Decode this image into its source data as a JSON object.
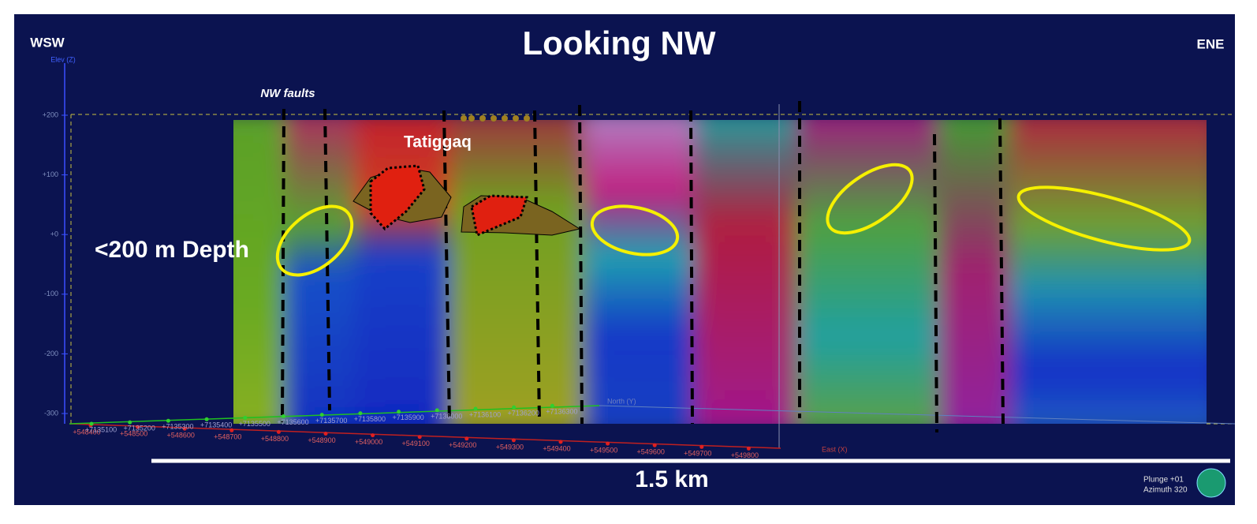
{
  "header": {
    "title": "Looking NW",
    "left": "WSW",
    "right": "ENE"
  },
  "elevation_axis": {
    "label": "Elev (Z)",
    "ticks": [
      "+200",
      "+100",
      "+0",
      "-100",
      "-200",
      "-300"
    ]
  },
  "annotations": {
    "faults": "NW faults",
    "deposit": "Tatiggaq",
    "depth": "<200 m Depth"
  },
  "grid": {
    "north_label": "North (Y)",
    "north_ticks": [
      "+7135100",
      "+7135200",
      "+7135300",
      "+7135400",
      "+7135500",
      "+7135600",
      "+7135700",
      "+7135800",
      "+7135900",
      "+7136000",
      "+7136100",
      "+7136200",
      "+7136300"
    ],
    "east_label": "East (X)",
    "east_ticks": [
      "+548400",
      "+548500",
      "+548600",
      "+548700",
      "+548800",
      "+548900",
      "+549000",
      "+549100",
      "+549200",
      "+549300",
      "+549400",
      "+549500",
      "+549600",
      "+549700",
      "+549800"
    ]
  },
  "scale_bar": "1.5 km",
  "view": {
    "plunge": "Plunge +01",
    "azimuth": "Azimuth 320"
  }
}
